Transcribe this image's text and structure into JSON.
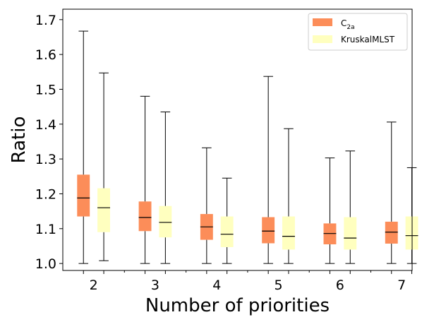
{
  "chart_data": {
    "type": "boxplot",
    "xlabel": "Number of priorities",
    "ylabel": "Ratio",
    "ylim": [
      0.98,
      1.73
    ],
    "yticks": [
      1.0,
      1.1,
      1.2,
      1.3,
      1.4,
      1.5,
      1.6,
      1.7
    ],
    "categories": [
      "2",
      "3",
      "4",
      "5",
      "6",
      "7"
    ],
    "legend_position": "top-right",
    "grid": false,
    "series": [
      {
        "name_main": "C",
        "name_sub": "2a",
        "color": "#FC8D59",
        "boxes": [
          {
            "whislo": 1.0,
            "q1": 1.135,
            "med": 1.188,
            "q3": 1.255,
            "whishi": 1.667
          },
          {
            "whislo": 1.0,
            "q1": 1.093,
            "med": 1.132,
            "q3": 1.178,
            "whishi": 1.48
          },
          {
            "whislo": 1.0,
            "q1": 1.068,
            "med": 1.105,
            "q3": 1.142,
            "whishi": 1.332
          },
          {
            "whislo": 1.0,
            "q1": 1.058,
            "med": 1.093,
            "q3": 1.133,
            "whishi": 1.537
          },
          {
            "whislo": 1.0,
            "q1": 1.055,
            "med": 1.086,
            "q3": 1.115,
            "whishi": 1.303
          },
          {
            "whislo": 1.0,
            "q1": 1.057,
            "med": 1.09,
            "q3": 1.12,
            "whishi": 1.406
          }
        ]
      },
      {
        "name": "KruskalMLST",
        "color": "#FFFFBF",
        "boxes": [
          {
            "whislo": 1.008,
            "q1": 1.09,
            "med": 1.16,
            "q3": 1.216,
            "whishi": 1.547
          },
          {
            "whislo": 1.0,
            "q1": 1.075,
            "med": 1.118,
            "q3": 1.165,
            "whishi": 1.435
          },
          {
            "whislo": 1.0,
            "q1": 1.047,
            "med": 1.084,
            "q3": 1.135,
            "whishi": 1.245
          },
          {
            "whislo": 1.0,
            "q1": 1.04,
            "med": 1.078,
            "q3": 1.135,
            "whishi": 1.387
          },
          {
            "whislo": 1.0,
            "q1": 1.04,
            "med": 1.073,
            "q3": 1.133,
            "whishi": 1.323
          },
          {
            "whislo": 1.0,
            "q1": 1.04,
            "med": 1.08,
            "q3": 1.135,
            "whishi": 1.275
          }
        ]
      }
    ]
  }
}
